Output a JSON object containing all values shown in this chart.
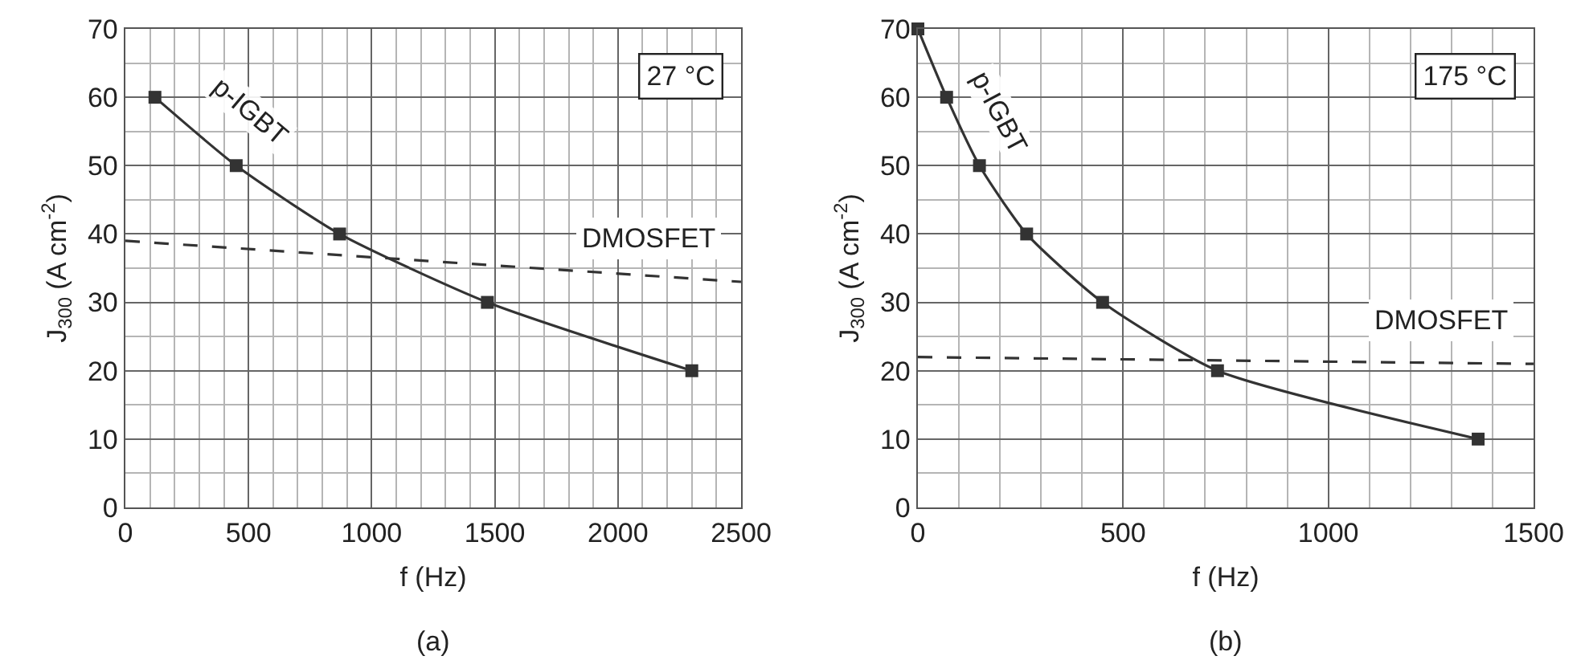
{
  "chart_data": [
    {
      "type": "line",
      "xlabel": "f (Hz)",
      "ylabel": "J$_{300}$ (A cm$^{-2}$)",
      "annotations": [
        "27 °C",
        "(a)"
      ],
      "grid": true,
      "legend": false,
      "xlim": [
        0,
        2500
      ],
      "ylim": [
        0,
        70
      ],
      "xticks": [
        0,
        {
          "value": 100,
          "label": null
        },
        {
          "value": 200,
          "label": null
        },
        {
          "value": 300,
          "label": null
        },
        {
          "value": 400,
          "label": null
        },
        500,
        {
          "value": 600,
          "label": null
        },
        {
          "value": 700,
          "label": null
        },
        {
          "value": 800,
          "label": null
        },
        {
          "value": 900,
          "label": null
        },
        1000,
        {
          "value": 1100,
          "label": null
        },
        {
          "value": 1200,
          "label": null
        },
        {
          "value": 1300,
          "label": null
        },
        {
          "value": 1400,
          "label": null
        },
        1500,
        {
          "value": 1600,
          "label": null
        },
        {
          "value": 1700,
          "label": null
        },
        {
          "value": 1800,
          "label": null
        },
        {
          "value": 1900,
          "label": null
        },
        2000,
        {
          "value": 2100,
          "label": null
        },
        {
          "value": 2200,
          "label": null
        },
        {
          "value": 2300,
          "label": null
        },
        {
          "value": 2400,
          "label": null
        },
        2500
      ],
      "yticks": [
        0,
        {
          "value": 5,
          "label": null
        },
        10,
        {
          "value": 15,
          "label": null
        },
        20,
        {
          "value": 25,
          "label": null
        },
        30,
        {
          "value": 35,
          "label": null
        },
        40,
        {
          "value": 45,
          "label": null
        },
        50,
        {
          "value": 55,
          "label": null
        },
        60,
        {
          "value": 65,
          "label": null
        },
        70
      ],
      "series": [
        {
          "name": "p-IGBT",
          "color": "#333333",
          "marker": "square",
          "line_style": "solid",
          "x": [
            120,
            450,
            870,
            1470,
            2300
          ],
          "values": [
            60,
            50,
            40,
            30,
            20
          ]
        },
        {
          "name": "DMOSFET",
          "color": "#333333",
          "marker": "none",
          "line_style": "dashed",
          "x": [
            0,
            2500
          ],
          "values": [
            39,
            33
          ]
        }
      ]
    },
    {
      "type": "line",
      "xlabel": "f (Hz)",
      "ylabel": "J$_{300}$ (A cm$^{-2}$)",
      "annotations": [
        "175 °C",
        "(b)"
      ],
      "grid": true,
      "legend": false,
      "xlim": [
        0,
        1500
      ],
      "ylim": [
        0,
        70
      ],
      "xticks": [
        0,
        {
          "value": 100,
          "label": null
        },
        {
          "value": 200,
          "label": null
        },
        {
          "value": 300,
          "label": null
        },
        {
          "value": 400,
          "label": null
        },
        500,
        {
          "value": 600,
          "label": null
        },
        {
          "value": 700,
          "label": null
        },
        {
          "value": 800,
          "label": null
        },
        {
          "value": 900,
          "label": null
        },
        1000,
        {
          "value": 1100,
          "label": null
        },
        {
          "value": 1200,
          "label": null
        },
        {
          "value": 1300,
          "label": null
        },
        {
          "value": 1400,
          "label": null
        },
        1500
      ],
      "yticks": [
        0,
        {
          "value": 5,
          "label": null
        },
        10,
        {
          "value": 15,
          "label": null
        },
        20,
        {
          "value": 25,
          "label": null
        },
        30,
        {
          "value": 35,
          "label": null
        },
        40,
        {
          "value": 45,
          "label": null
        },
        50,
        {
          "value": 55,
          "label": null
        },
        60,
        {
          "value": 65,
          "label": null
        },
        70
      ],
      "series": [
        {
          "name": "p-IGBT",
          "color": "#333333",
          "marker": "square",
          "line_style": "solid",
          "x": [
            0,
            70,
            150,
            265,
            450,
            730,
            1365
          ],
          "values": [
            70,
            60,
            50,
            40,
            30,
            20,
            10
          ]
        },
        {
          "name": "DMOSFET",
          "color": "#333333",
          "marker": "none",
          "line_style": "dashed",
          "x": [
            0,
            1500
          ],
          "values": [
            22,
            21
          ]
        }
      ]
    }
  ]
}
